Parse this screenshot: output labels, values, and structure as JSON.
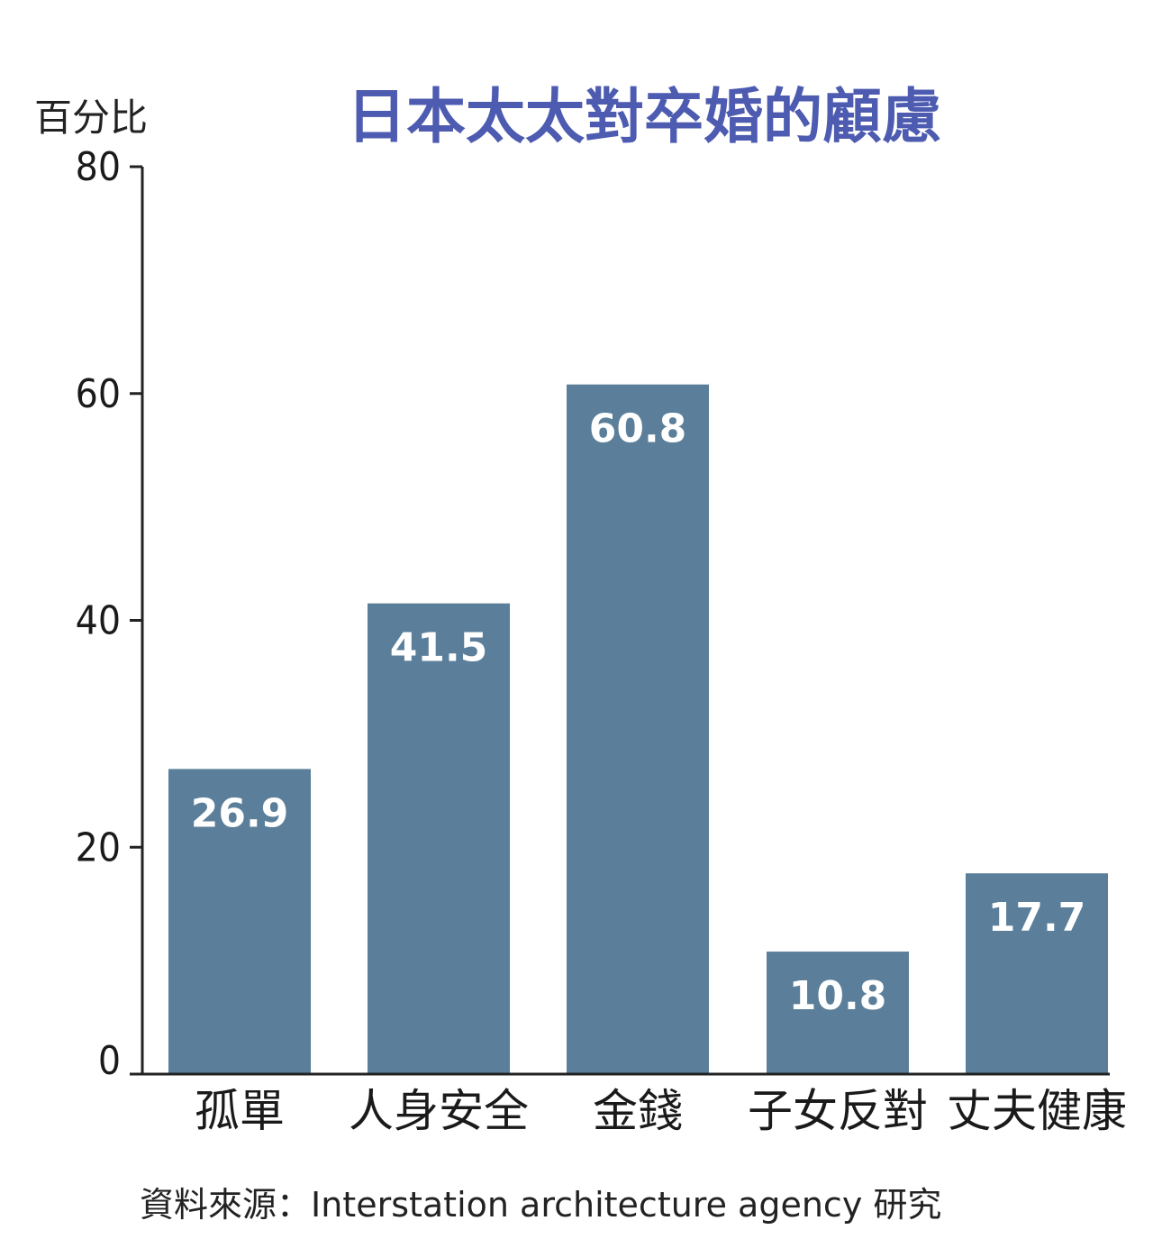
{
  "chart_data": {
    "type": "bar",
    "title": "日本太太對卒婚的顧慮",
    "ylabel": "百分比",
    "xlabel": "",
    "categories": [
      "孤單",
      "人身安全",
      "金錢",
      "子女反對",
      "丈夫健康"
    ],
    "values": [
      26.9,
      41.5,
      60.8,
      10.8,
      17.7
    ],
    "data_labels": [
      "26.9",
      "41.5",
      "60.8",
      "10.8",
      "17.7"
    ],
    "ylim": [
      0,
      80
    ],
    "yticks": [
      0,
      20,
      40,
      60,
      80
    ],
    "grid": false,
    "legend": "none",
    "source": "資料來源：Interstation architecture agency 研究"
  },
  "colors": {
    "bar": "#5b7f9a",
    "title": "#4d5bb0",
    "axis": "#222222",
    "data_label": "#ffffff"
  }
}
